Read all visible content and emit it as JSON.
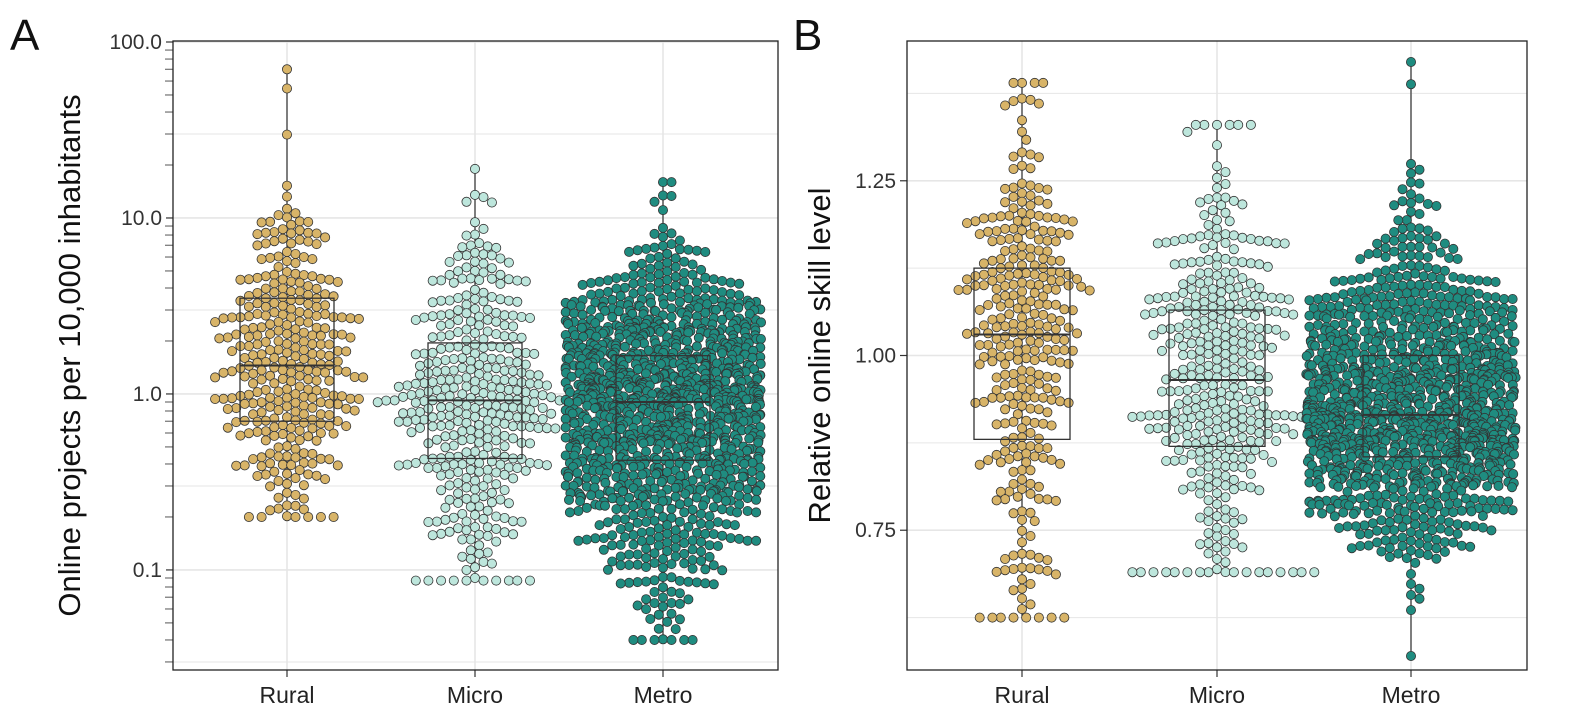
{
  "colors": {
    "Rural": "#d8b468",
    "Micro": "#bde6dc",
    "Metro": "#1f8c80",
    "outline": "#333333",
    "grid": "#e6e6e6",
    "panel_border": "#222222"
  },
  "chart_data": [
    {
      "panel": "A",
      "type": "box+beeswarm",
      "ylabel": "Online projects per 10,000 inhabitants",
      "yscale": "log10",
      "ylim": [
        0.027,
        100
      ],
      "yticks": [
        {
          "value": 100,
          "label": "100.0"
        },
        {
          "value": 10,
          "label": "10.0"
        },
        {
          "value": 1,
          "label": "1.0"
        },
        {
          "value": 0.1,
          "label": "0.1"
        }
      ],
      "categories": [
        "Rural",
        "Micro",
        "Metro"
      ],
      "boxes": [
        {
          "name": "Rural",
          "q1": 0.7,
          "median": 1.45,
          "q3": 3.5,
          "min": 0.2,
          "max": 70,
          "n_points": 320
        },
        {
          "name": "Micro",
          "q1": 0.43,
          "median": 0.92,
          "q3": 1.95,
          "min": 0.087,
          "max": 19,
          "n_points": 380
        },
        {
          "name": "Metro",
          "q1": 0.42,
          "median": 0.9,
          "q3": 1.65,
          "min": 0.04,
          "max": 16,
          "n_points": 1300
        }
      ]
    },
    {
      "panel": "B",
      "type": "box+beeswarm",
      "ylabel": "Relative online skill level",
      "yscale": "linear",
      "ylim": [
        0.55,
        1.45
      ],
      "yticks": [
        {
          "value": 1.25,
          "label": "1.25"
        },
        {
          "value": 1.0,
          "label": "1.00"
        },
        {
          "value": 0.75,
          "label": "0.75"
        }
      ],
      "categories": [
        "Rural",
        "Micro",
        "Metro"
      ],
      "boxes": [
        {
          "name": "Rural",
          "q1": 0.88,
          "median": 1.03,
          "q3": 1.125,
          "min": 0.625,
          "max": 1.39,
          "n_points": 320
        },
        {
          "name": "Micro",
          "q1": 0.87,
          "median": 0.965,
          "q3": 1.065,
          "min": 0.69,
          "max": 1.33,
          "n_points": 380
        },
        {
          "name": "Metro",
          "q1": 0.855,
          "median": 0.915,
          "q3": 1.0,
          "min": 0.57,
          "max": 1.42,
          "n_points": 1300
        }
      ]
    }
  ]
}
